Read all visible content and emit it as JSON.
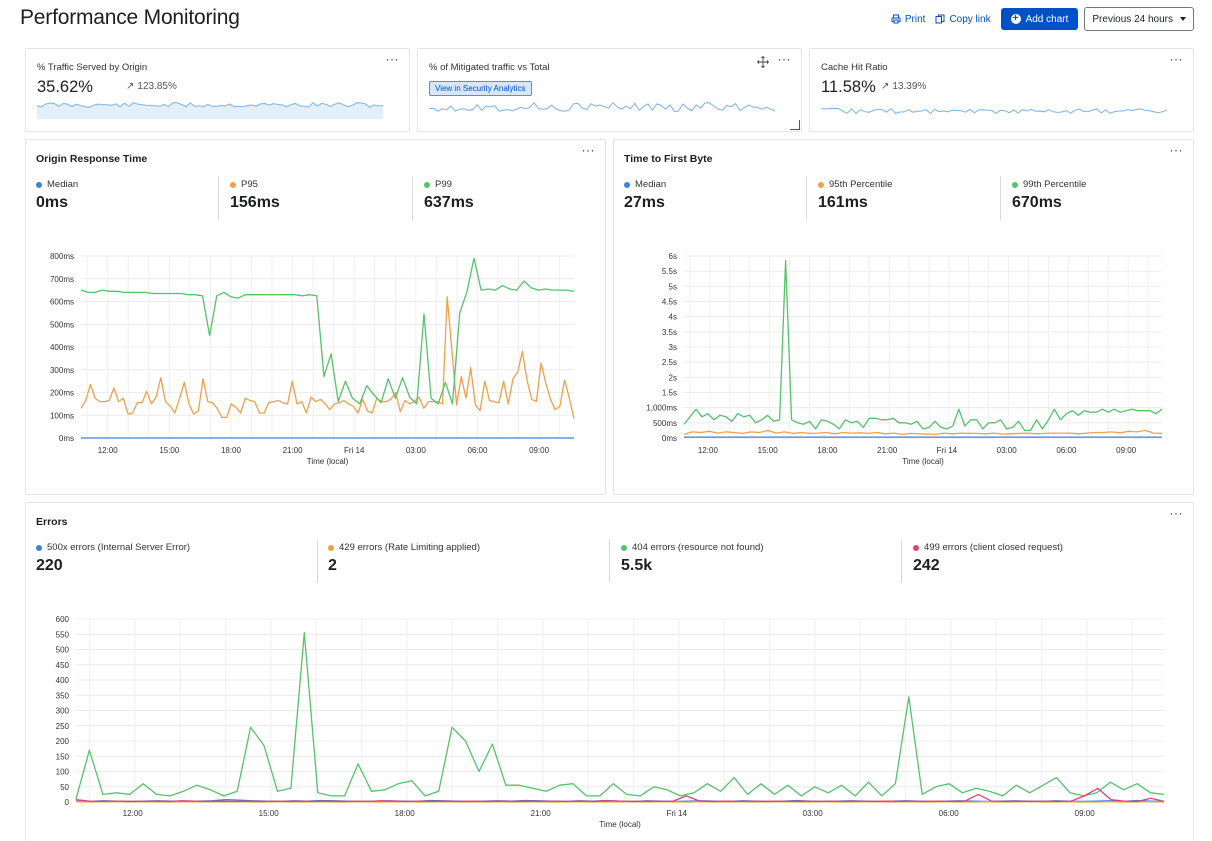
{
  "page": {
    "title": "Performance Monitoring"
  },
  "toolbar": {
    "print_label": "Print",
    "copy_link_label": "Copy link",
    "add_chart_label": "Add chart",
    "time_range_label": "Previous 24 hours"
  },
  "colors": {
    "blue": "#3b82e0",
    "orange": "#f0a04b",
    "green": "#56c26a",
    "pink": "#e0407a",
    "primary": "#0051c3",
    "spark": "#7bb3ea"
  },
  "icons": {
    "print": "printer-icon",
    "copy": "copy-icon",
    "add": "plus-circle-icon",
    "menu": "more-horizontal-icon",
    "move": "move-icon",
    "delta": "arrow-up-right-icon"
  },
  "kpis": {
    "traffic_origin": {
      "title": "% Traffic Served by Origin",
      "value": "35.62%",
      "delta": "123.85%"
    },
    "mitigated": {
      "title": "% of Mitigated traffic vs Total",
      "button": "View in Security Analytics"
    },
    "cache_hit": {
      "title": "Cache Hit Ratio",
      "value": "11.58%",
      "delta": "13.39%"
    }
  },
  "origin_response": {
    "title": "Origin Response Time",
    "stats": [
      {
        "label": "Median",
        "value": "0ms"
      },
      {
        "label": "P95",
        "value": "156ms"
      },
      {
        "label": "P99",
        "value": "637ms"
      }
    ]
  },
  "ttfb": {
    "title": "Time to First Byte",
    "stats": [
      {
        "label": "Median",
        "value": "27ms"
      },
      {
        "label": "95th Percentile",
        "value": "161ms"
      },
      {
        "label": "99th Percentile",
        "value": "670ms"
      }
    ]
  },
  "errors": {
    "title": "Errors",
    "stats": [
      {
        "label": "500x errors (Internal Server Error)",
        "value": "220"
      },
      {
        "label": "429 errors (Rate Limiting applied)",
        "value": "2"
      },
      {
        "label": "404 errors (resource not found)",
        "value": "5.5k"
      },
      {
        "label": "499 errors (client closed request)",
        "value": "242"
      }
    ]
  },
  "chart_data": [
    {
      "id": "origin",
      "type": "line",
      "xlabel": "Time (local)",
      "x_ticks": [
        "12:00",
        "15:00",
        "18:00",
        "21:00",
        "Fri 14",
        "03:00",
        "06:00",
        "09:00"
      ],
      "x_tick_positions": [
        1.3,
        4.3,
        7.3,
        10.3,
        13.3,
        16.3,
        19.3,
        22.3
      ],
      "x_range": [
        0,
        24
      ],
      "y_range": [
        0,
        800
      ],
      "y_ticks": [
        0,
        100,
        200,
        300,
        400,
        500,
        600,
        700,
        800
      ],
      "y_tick_labels": [
        "0ms",
        "100ms",
        "200ms",
        "300ms",
        "400ms",
        "500ms",
        "600ms",
        "700ms",
        "800ms"
      ],
      "grid": true,
      "series": [
        {
          "name": "Median",
          "color": "#3b82e0",
          "values": [
            0,
            0,
            0,
            0,
            0,
            0,
            0,
            0,
            0,
            0,
            0,
            0,
            0,
            0,
            0,
            0,
            0,
            0,
            0,
            0,
            0,
            0,
            0,
            0,
            0,
            0,
            0,
            0,
            0,
            0,
            0,
            0,
            0,
            0,
            0,
            0,
            0,
            0,
            0,
            0,
            0,
            0,
            0,
            0,
            0,
            0,
            0,
            0,
            0,
            0,
            0,
            0,
            0,
            0,
            0,
            0,
            0,
            0,
            0,
            0,
            0,
            0,
            0,
            0,
            0,
            0,
            0,
            0,
            0,
            0,
            0,
            0,
            0,
            0,
            0,
            0,
            0,
            0,
            0,
            0,
            0,
            0,
            0,
            0,
            0,
            0,
            0,
            0,
            0,
            0,
            0,
            0,
            0,
            0,
            0,
            0,
            0
          ]
        },
        {
          "name": "P95",
          "color": "#f0a04b",
          "values": [
            130,
            165,
            235,
            175,
            160,
            160,
            165,
            220,
            160,
            175,
            105,
            110,
            155,
            155,
            205,
            150,
            180,
            265,
            160,
            140,
            110,
            175,
            245,
            150,
            105,
            120,
            260,
            160,
            155,
            130,
            90,
            90,
            150,
            135,
            110,
            175,
            165,
            160,
            110,
            110,
            155,
            160,
            165,
            155,
            150,
            250,
            150,
            160,
            110,
            180,
            160,
            170,
            150,
            125,
            150,
            155,
            165,
            150,
            140,
            110,
            170,
            120,
            110,
            175,
            160,
            160,
            170,
            200,
            115,
            165,
            150,
            160,
            180,
            130,
            160,
            160,
            160,
            150,
            620,
            385,
            145,
            270,
            175,
            310,
            145,
            120,
            250,
            165,
            160,
            155,
            250,
            150,
            260,
            290,
            380,
            255,
            170,
            160,
            330,
            240,
            170,
            125,
            140,
            255,
            175,
            85
          ]
        },
        {
          "name": "P99",
          "color": "#56c26a",
          "values": [
            650,
            640,
            640,
            650,
            645,
            645,
            640,
            640,
            640,
            640,
            635,
            635,
            635,
            635,
            635,
            630,
            630,
            625,
            450,
            625,
            640,
            620,
            615,
            630,
            630,
            630,
            630,
            630,
            630,
            630,
            630,
            625,
            630,
            625,
            270,
            370,
            160,
            250,
            175,
            150,
            230,
            190,
            155,
            260,
            175,
            265,
            180,
            150,
            545,
            175,
            150,
            245,
            150,
            550,
            640,
            790,
            650,
            655,
            650,
            670,
            655,
            650,
            690,
            660,
            650,
            655,
            650,
            650,
            650,
            645
          ]
        }
      ]
    },
    {
      "id": "ttfb",
      "type": "line",
      "xlabel": "Time (local)",
      "x_ticks": [
        "12:00",
        "15:00",
        "18:00",
        "21:00",
        "Fri 14",
        "03:00",
        "06:00",
        "09:00"
      ],
      "x_tick_positions": [
        1.2,
        4.2,
        7.2,
        10.2,
        13.2,
        16.2,
        19.2,
        22.2
      ],
      "x_range": [
        0,
        24
      ],
      "y_range": [
        0,
        6
      ],
      "y_ticks": [
        0,
        0.5,
        1,
        1.5,
        2,
        2.5,
        3,
        3.5,
        4,
        4.5,
        5,
        5.5,
        6
      ],
      "y_tick_labels": [
        "0ms",
        "500ms",
        "1,000ms",
        "1.5s",
        "2s",
        "2.5s",
        "3s",
        "3.5s",
        "4s",
        "4.5s",
        "5s",
        "5.5s",
        "6s"
      ],
      "grid": true,
      "series": [
        {
          "name": "Median",
          "color": "#3b82e0",
          "values": [
            0.03,
            0.03,
            0.03,
            0.03,
            0.03,
            0.03,
            0.03,
            0.03,
            0.03,
            0.03,
            0.03,
            0.03,
            0.03,
            0.03,
            0.03,
            0.03,
            0.03,
            0.03,
            0.03,
            0.03,
            0.03,
            0.03,
            0.03,
            0.03,
            0.03,
            0.03,
            0.03,
            0.03,
            0.03,
            0.03,
            0.03,
            0.03,
            0.03,
            0.03,
            0.03,
            0.03,
            0.03,
            0.03,
            0.03,
            0.03,
            0.03,
            0.03,
            0.03,
            0.03,
            0.03,
            0.03,
            0.03,
            0.03
          ]
        },
        {
          "name": "95th Percentile",
          "color": "#f0a04b",
          "values": [
            0.12,
            0.2,
            0.18,
            0.22,
            0.16,
            0.2,
            0.18,
            0.15,
            0.2,
            0.18,
            0.25,
            0.16,
            0.2,
            0.15,
            0.18,
            0.15,
            0.16,
            0.18,
            0.14,
            0.18,
            0.16,
            0.17,
            0.15,
            0.18,
            0.14,
            0.16,
            0.12,
            0.15,
            0.14,
            0.13,
            0.12,
            0.16,
            0.14,
            0.16,
            0.15,
            0.15,
            0.14,
            0.16,
            0.13,
            0.14,
            0.15,
            0.16,
            0.14,
            0.15,
            0.16,
            0.16,
            0.16,
            0.14,
            0.16,
            0.18,
            0.18,
            0.2,
            0.17,
            0.22,
            0.2,
            0.25,
            0.16,
            0.15
          ]
        },
        {
          "name": "99th Percentile",
          "color": "#56c26a",
          "values": [
            0.45,
            0.7,
            0.95,
            0.7,
            0.8,
            0.6,
            0.75,
            0.7,
            0.55,
            0.8,
            0.7,
            0.75,
            0.5,
            0.6,
            0.75,
            0.55,
            0.6,
            5.85,
            0.6,
            0.5,
            0.45,
            0.55,
            0.3,
            0.6,
            0.55,
            0.45,
            0.3,
            0.6,
            0.5,
            0.55,
            0.35,
            0.65,
            0.65,
            0.6,
            0.6,
            0.65,
            0.5,
            0.5,
            0.45,
            0.55,
            0.3,
            0.35,
            0.55,
            0.35,
            0.3,
            0.4,
            0.95,
            0.4,
            0.6,
            0.6,
            0.3,
            0.5,
            0.5,
            0.6,
            0.3,
            0.35,
            0.55,
            0.25,
            0.25,
            0.6,
            0.3,
            0.6,
            0.95,
            0.6,
            0.8,
            0.9,
            0.75,
            0.9,
            0.85,
            0.85,
            0.95,
            0.85,
            0.95,
            0.85,
            0.9,
            0.95,
            0.9,
            0.9,
            0.9,
            0.8,
            0.95
          ]
        }
      ]
    },
    {
      "id": "errors",
      "type": "line",
      "xlabel": "Time (local)",
      "x_ticks": [
        "12:00",
        "15:00",
        "18:00",
        "21:00",
        "Fri 14",
        "03:00",
        "06:00",
        "09:00"
      ],
      "x_tick_positions": [
        1.25,
        4.25,
        7.25,
        10.25,
        13.25,
        16.25,
        19.25,
        22.25
      ],
      "x_range": [
        0,
        24
      ],
      "y_range": [
        0,
        600
      ],
      "y_ticks": [
        0,
        50,
        100,
        150,
        200,
        250,
        300,
        350,
        400,
        450,
        500,
        550,
        600
      ],
      "y_tick_labels": [
        "0",
        "50",
        "100",
        "150",
        "200",
        "250",
        "300",
        "350",
        "400",
        "450",
        "500",
        "550",
        "600"
      ],
      "grid": true,
      "series": [
        {
          "name": "500x errors (Internal Server Error)",
          "color": "#3b82e0",
          "values": [
            3,
            2,
            4,
            3,
            2,
            3,
            4,
            3,
            2,
            3,
            4,
            8,
            6,
            4,
            3,
            2,
            4,
            3,
            5,
            4,
            3,
            2,
            3,
            4,
            3,
            2,
            5,
            4,
            3,
            2,
            3,
            4,
            3,
            5,
            4,
            3,
            2,
            4,
            3,
            5,
            3,
            2,
            4,
            3,
            2,
            3,
            4,
            3,
            2,
            4,
            3,
            2,
            3,
            5,
            3,
            2,
            3,
            4,
            3,
            2,
            3,
            4,
            3,
            2,
            3,
            4,
            3,
            2,
            3,
            4,
            3,
            2,
            4,
            3,
            2,
            3,
            4,
            2,
            5,
            3,
            2
          ]
        },
        {
          "name": "429 errors (Rate Limiting applied)",
          "color": "#f0a04b",
          "values": [
            1,
            0,
            1,
            1,
            0,
            1,
            0,
            0,
            1,
            0,
            1,
            0,
            1,
            0,
            0,
            1,
            0,
            0,
            1,
            0,
            0,
            1,
            0,
            0,
            1,
            0,
            0,
            1,
            0,
            0,
            0,
            1,
            0,
            0,
            1,
            0,
            0,
            1,
            0,
            0,
            1,
            0,
            0,
            1,
            0,
            0,
            1,
            0,
            0,
            1,
            0,
            0,
            1,
            0,
            0,
            1,
            0,
            0,
            1,
            0,
            0,
            1,
            0,
            0,
            1,
            0,
            0,
            1,
            0,
            0,
            1,
            0,
            0,
            1,
            0,
            0,
            1,
            0,
            0,
            1,
            0
          ]
        },
        {
          "name": "404 errors (resource not found)",
          "color": "#56c26a",
          "values": [
            10,
            170,
            25,
            30,
            25,
            60,
            25,
            20,
            35,
            55,
            40,
            20,
            35,
            245,
            185,
            35,
            45,
            555,
            30,
            20,
            20,
            125,
            35,
            40,
            60,
            70,
            20,
            35,
            245,
            200,
            100,
            190,
            55,
            55,
            45,
            35,
            55,
            60,
            20,
            20,
            60,
            25,
            20,
            50,
            40,
            20,
            30,
            60,
            35,
            80,
            25,
            60,
            25,
            55,
            20,
            50,
            30,
            55,
            20,
            65,
            20,
            60,
            345,
            25,
            50,
            60,
            30,
            45,
            35,
            20,
            55,
            30,
            55,
            80,
            30,
            20,
            30,
            65,
            40,
            60,
            30,
            25
          ]
        },
        {
          "name": "499 errors (client closed request)",
          "color": "#e0407a",
          "values": [
            8,
            3,
            2,
            3,
            2,
            2,
            3,
            2,
            4,
            3,
            2,
            3,
            2,
            3,
            2,
            3,
            2,
            3,
            2,
            3,
            2,
            3,
            2,
            4,
            3,
            2,
            3,
            2,
            3,
            2,
            3,
            2,
            3,
            2,
            3,
            2,
            3,
            2,
            3,
            2,
            4,
            3,
            2,
            3,
            2,
            3,
            20,
            3,
            2,
            3,
            2,
            3,
            2,
            3,
            2,
            3,
            2,
            3,
            2,
            3,
            2,
            3,
            2,
            3,
            2,
            3,
            2,
            3,
            25,
            3,
            2,
            3,
            2,
            3,
            2,
            3,
            20,
            45,
            8,
            3,
            2,
            12,
            2
          ]
        }
      ]
    }
  ]
}
